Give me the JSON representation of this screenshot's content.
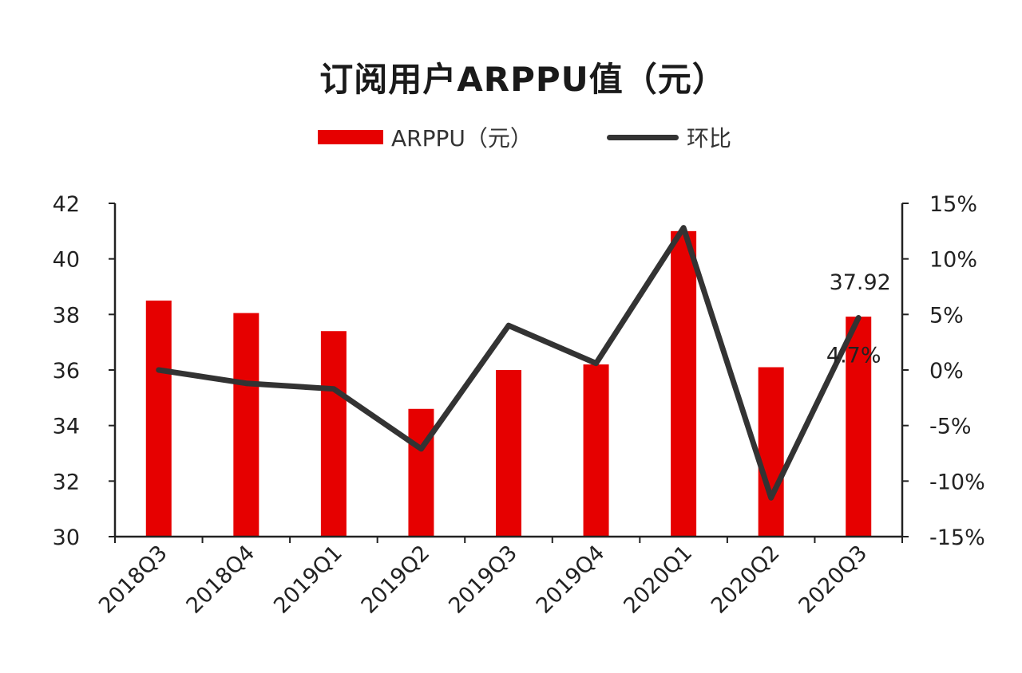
{
  "colors": {
    "bar": "#e60000",
    "line": "#333333",
    "axis": "#222222"
  },
  "chart_data": {
    "type": "bar",
    "title": "订阅用户ARPPU值（元）",
    "categories": [
      "2018Q3",
      "2018Q4",
      "2019Q1",
      "2019Q2",
      "2019Q3",
      "2019Q4",
      "2020Q1",
      "2020Q2",
      "2020Q3"
    ],
    "series": [
      {
        "name": "ARPPU（元）",
        "type": "bar",
        "axis": "left",
        "values": [
          38.5,
          38.05,
          37.4,
          34.6,
          36.0,
          36.2,
          41.0,
          36.1,
          37.92
        ]
      },
      {
        "name": "环比",
        "type": "line",
        "axis": "right",
        "values": [
          0.0,
          -1.2,
          -1.7,
          -7.1,
          4.0,
          0.6,
          12.8,
          -11.5,
          4.7
        ]
      }
    ],
    "ylim_left": [
      30,
      42
    ],
    "yticks_left": [
      "30",
      "32",
      "34",
      "36",
      "38",
      "40",
      "42"
    ],
    "ylim_right": [
      -15,
      15
    ],
    "yticks_right": [
      "-15%",
      "-10%",
      "-5%",
      "0%",
      "5%",
      "10%",
      "15%"
    ],
    "annotations": [
      {
        "text": "37.92",
        "category": "2020Q3"
      },
      {
        "text": "4.7%",
        "category": "2020Q3"
      }
    ],
    "legend_position": "top-center",
    "grid": false
  }
}
